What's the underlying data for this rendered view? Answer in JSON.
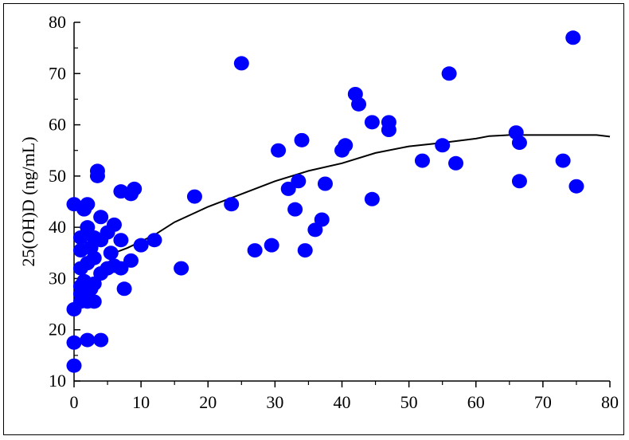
{
  "chart_data": {
    "type": "scatter",
    "title": "",
    "xlabel": "",
    "ylabel": "25(OH)D (ng/mL)",
    "xlim": [
      0,
      80
    ],
    "ylim": [
      10,
      80
    ],
    "xticks": [
      0,
      10,
      20,
      30,
      40,
      50,
      60,
      70,
      80
    ],
    "yticks": [
      10,
      20,
      30,
      40,
      50,
      60,
      70,
      80
    ],
    "grid": false,
    "point_color": "#0000ff",
    "curve_color": "#000000",
    "points": [
      [
        0,
        44.5
      ],
      [
        0,
        24
      ],
      [
        0,
        17.5
      ],
      [
        0,
        13
      ],
      [
        1,
        28.5
      ],
      [
        1,
        27
      ],
      [
        1,
        25.5
      ],
      [
        1,
        38
      ],
      [
        1,
        35.5
      ],
      [
        1,
        32
      ],
      [
        1.5,
        29.5
      ],
      [
        1.5,
        43.5
      ],
      [
        2,
        44.5
      ],
      [
        2,
        40
      ],
      [
        2,
        33
      ],
      [
        2,
        25.5
      ],
      [
        2,
        18
      ],
      [
        2.5,
        36
      ],
      [
        2.5,
        28
      ],
      [
        3,
        38
      ],
      [
        3,
        34
      ],
      [
        3,
        29
      ],
      [
        3,
        25.5
      ],
      [
        3.5,
        51
      ],
      [
        3.5,
        50
      ],
      [
        4,
        42
      ],
      [
        4,
        37.5
      ],
      [
        4,
        31
      ],
      [
        4,
        18
      ],
      [
        5,
        39
      ],
      [
        5,
        32
      ],
      [
        5.5,
        35
      ],
      [
        6,
        40.5
      ],
      [
        6,
        32.5
      ],
      [
        7,
        47
      ],
      [
        7,
        37.5
      ],
      [
        7,
        32
      ],
      [
        7.5,
        28
      ],
      [
        8.5,
        33.5
      ],
      [
        8.5,
        46.5
      ],
      [
        9,
        47.5
      ],
      [
        10,
        36.5
      ],
      [
        12,
        37.5
      ],
      [
        16,
        32
      ],
      [
        18,
        46
      ],
      [
        23.5,
        44.5
      ],
      [
        25,
        72
      ],
      [
        27,
        35.5
      ],
      [
        29.5,
        36.5
      ],
      [
        30.5,
        55
      ],
      [
        32,
        47.5
      ],
      [
        33,
        43.5
      ],
      [
        33.5,
        49
      ],
      [
        34,
        57
      ],
      [
        34.5,
        35.5
      ],
      [
        36,
        39.5
      ],
      [
        37,
        41.5
      ],
      [
        37.5,
        48.5
      ],
      [
        40,
        55
      ],
      [
        40.5,
        56
      ],
      [
        42,
        66
      ],
      [
        42.5,
        64
      ],
      [
        44.5,
        45.5
      ],
      [
        44.5,
        60.5
      ],
      [
        47,
        60.5
      ],
      [
        47,
        59
      ],
      [
        52,
        53
      ],
      [
        55,
        56
      ],
      [
        56,
        70
      ],
      [
        57,
        52.5
      ],
      [
        66,
        58.5
      ],
      [
        66.5,
        56.5
      ],
      [
        66.5,
        49
      ],
      [
        73,
        53
      ],
      [
        74.5,
        77
      ],
      [
        75,
        48
      ]
    ],
    "curve": [
      [
        5,
        34.5
      ],
      [
        8,
        36
      ],
      [
        12,
        38.5
      ],
      [
        15,
        41
      ],
      [
        20,
        44
      ],
      [
        25,
        46.5
      ],
      [
        30,
        49
      ],
      [
        35,
        51
      ],
      [
        40,
        52.5
      ],
      [
        45,
        54.5
      ],
      [
        50,
        55.8
      ],
      [
        55,
        56.5
      ],
      [
        60,
        57.3
      ],
      [
        62,
        57.8
      ],
      [
        65,
        58
      ],
      [
        70,
        58
      ],
      [
        75,
        58
      ],
      [
        78,
        58
      ],
      [
        80,
        57.7
      ]
    ]
  }
}
